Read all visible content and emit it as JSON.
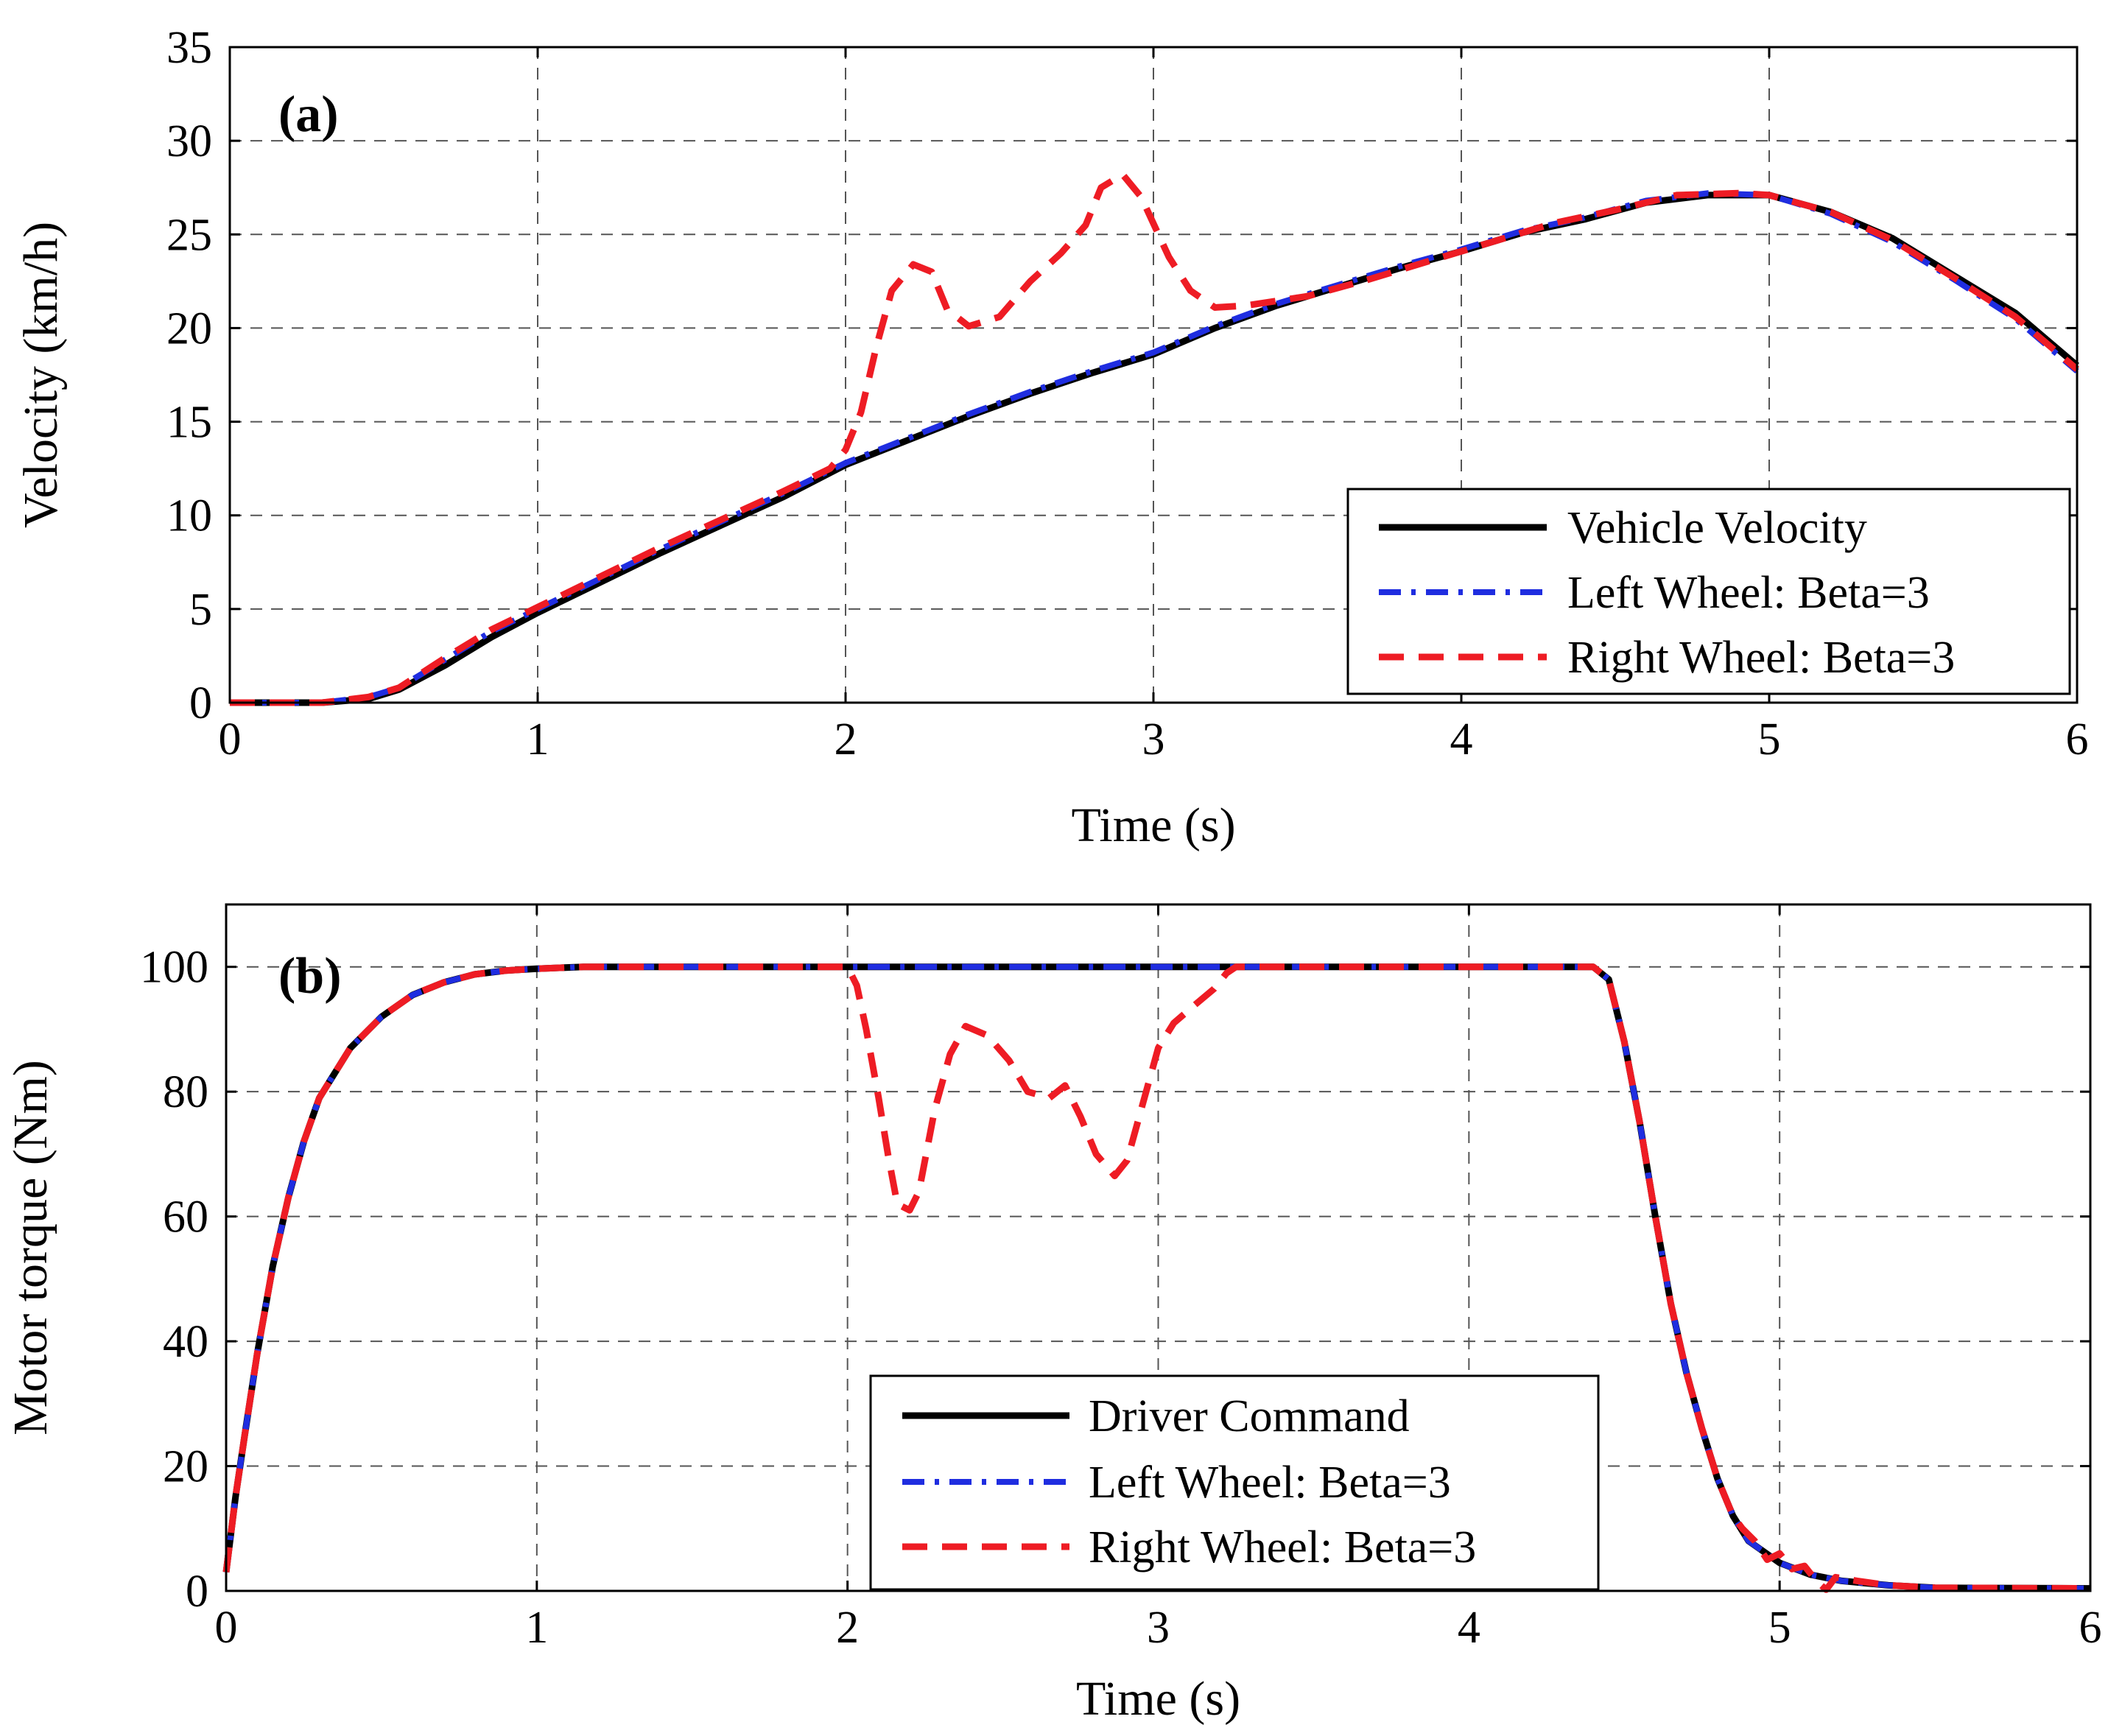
{
  "colors": {
    "black": "#000000",
    "blue": "#1f2de0",
    "red": "#ee1c24"
  },
  "chart_data": [
    {
      "id": "a",
      "type": "line",
      "panel_label": "(a)",
      "xlabel": "Time (s)",
      "ylabel": "Velocity (km/h)",
      "xlim": [
        0,
        6
      ],
      "ylim": [
        0,
        35
      ],
      "xticks": [
        0,
        1,
        2,
        3,
        4,
        5,
        6
      ],
      "yticks": [
        0,
        5,
        10,
        15,
        20,
        25,
        30,
        35
      ],
      "grid": true,
      "legend_position": "bottom-right",
      "series": [
        {
          "name": "Vehicle Velocity",
          "style": "solid",
          "color": "#000000",
          "points": [
            [
              0,
              0
            ],
            [
              0.3,
              0
            ],
            [
              0.45,
              0.2
            ],
            [
              0.55,
              0.7
            ],
            [
              0.7,
              2
            ],
            [
              0.85,
              3.5
            ],
            [
              1.0,
              4.8
            ],
            [
              1.2,
              6.4
            ],
            [
              1.4,
              8.0
            ],
            [
              1.6,
              9.5
            ],
            [
              1.8,
              11.0
            ],
            [
              2.0,
              12.7
            ],
            [
              2.2,
              14.0
            ],
            [
              2.4,
              15.3
            ],
            [
              2.6,
              16.5
            ],
            [
              2.8,
              17.6
            ],
            [
              3.0,
              18.6
            ],
            [
              3.2,
              20.0
            ],
            [
              3.4,
              21.2
            ],
            [
              3.6,
              22.2
            ],
            [
              3.8,
              23.2
            ],
            [
              4.0,
              24.1
            ],
            [
              4.2,
              25.1
            ],
            [
              4.4,
              25.8
            ],
            [
              4.6,
              26.7
            ],
            [
              4.8,
              27.1
            ],
            [
              5.0,
              27.1
            ],
            [
              5.2,
              26.2
            ],
            [
              5.4,
              24.8
            ],
            [
              5.6,
              22.8
            ],
            [
              5.8,
              20.8
            ],
            [
              6.0,
              18.0
            ]
          ]
        },
        {
          "name": "Left Wheel: Beta=3",
          "style": "dashdot",
          "color": "#1f2de0",
          "points": [
            [
              0,
              0
            ],
            [
              0.3,
              0
            ],
            [
              0.45,
              0.3
            ],
            [
              0.55,
              0.8
            ],
            [
              0.7,
              2.3
            ],
            [
              0.85,
              3.8
            ],
            [
              1.0,
              5.0
            ],
            [
              1.2,
              6.6
            ],
            [
              1.4,
              8.2
            ],
            [
              1.6,
              9.7
            ],
            [
              1.8,
              11.2
            ],
            [
              2.0,
              12.8
            ],
            [
              2.2,
              14.1
            ],
            [
              2.4,
              15.4
            ],
            [
              2.6,
              16.6
            ],
            [
              2.8,
              17.7
            ],
            [
              3.0,
              18.7
            ],
            [
              3.2,
              20.1
            ],
            [
              3.4,
              21.3
            ],
            [
              3.6,
              22.3
            ],
            [
              3.8,
              23.3
            ],
            [
              4.0,
              24.2
            ],
            [
              4.2,
              25.2
            ],
            [
              4.4,
              25.9
            ],
            [
              4.6,
              26.8
            ],
            [
              4.8,
              27.2
            ],
            [
              5.0,
              27.1
            ],
            [
              5.2,
              26.1
            ],
            [
              5.4,
              24.6
            ],
            [
              5.6,
              22.6
            ],
            [
              5.8,
              20.5
            ],
            [
              6.0,
              17.7
            ]
          ]
        },
        {
          "name": "Right Wheel: Beta=3",
          "style": "dashed",
          "color": "#ee1c24",
          "points": [
            [
              0,
              0
            ],
            [
              0.3,
              0
            ],
            [
              0.45,
              0.3
            ],
            [
              0.55,
              0.8
            ],
            [
              0.7,
              2.4
            ],
            [
              0.85,
              3.9
            ],
            [
              1.0,
              5.1
            ],
            [
              1.2,
              6.7
            ],
            [
              1.4,
              8.3
            ],
            [
              1.6,
              9.8
            ],
            [
              1.8,
              11.3
            ],
            [
              1.95,
              12.5
            ],
            [
              2.0,
              13.5
            ],
            [
              2.05,
              15.5
            ],
            [
              2.1,
              19.0
            ],
            [
              2.15,
              22.0
            ],
            [
              2.22,
              23.4
            ],
            [
              2.28,
              23.0
            ],
            [
              2.33,
              21.0
            ],
            [
              2.4,
              20.1
            ],
            [
              2.5,
              20.6
            ],
            [
              2.6,
              22.5
            ],
            [
              2.7,
              24.0
            ],
            [
              2.78,
              25.5
            ],
            [
              2.83,
              27.5
            ],
            [
              2.9,
              28.2
            ],
            [
              2.96,
              27.0
            ],
            [
              3.05,
              23.8
            ],
            [
              3.12,
              22.0
            ],
            [
              3.2,
              21.1
            ],
            [
              3.3,
              21.2
            ],
            [
              3.5,
              21.7
            ],
            [
              3.7,
              22.6
            ],
            [
              3.9,
              23.6
            ],
            [
              4.1,
              24.6
            ],
            [
              4.3,
              25.6
            ],
            [
              4.5,
              26.3
            ],
            [
              4.7,
              27.1
            ],
            [
              4.9,
              27.2
            ],
            [
              5.0,
              27.1
            ],
            [
              5.2,
              26.2
            ],
            [
              5.4,
              24.7
            ],
            [
              5.6,
              22.7
            ],
            [
              5.8,
              20.6
            ],
            [
              6.0,
              17.8
            ]
          ]
        }
      ]
    },
    {
      "id": "b",
      "type": "line",
      "panel_label": "(b)",
      "xlabel": "Time (s)",
      "ylabel": "Motor torque (Nm)",
      "xlim": [
        0,
        6
      ],
      "ylim": [
        0,
        110
      ],
      "xticks": [
        0,
        1,
        2,
        3,
        4,
        5,
        6
      ],
      "yticks": [
        0,
        20,
        40,
        60,
        80,
        100
      ],
      "grid": true,
      "legend_position": "bottom-center",
      "series": [
        {
          "name": "Driver Command",
          "style": "solid",
          "color": "#000000",
          "points": [
            [
              0,
              3
            ],
            [
              0.03,
              15
            ],
            [
              0.06,
              25
            ],
            [
              0.1,
              38
            ],
            [
              0.15,
              52
            ],
            [
              0.2,
              63
            ],
            [
              0.25,
              72
            ],
            [
              0.3,
              79
            ],
            [
              0.4,
              87
            ],
            [
              0.5,
              92
            ],
            [
              0.6,
              95.5
            ],
            [
              0.7,
              97.5
            ],
            [
              0.8,
              98.8
            ],
            [
              0.9,
              99.4
            ],
            [
              1.0,
              99.7
            ],
            [
              1.15,
              100
            ],
            [
              4.4,
              100
            ],
            [
              4.45,
              98
            ],
            [
              4.5,
              88
            ],
            [
              4.55,
              75
            ],
            [
              4.6,
              60
            ],
            [
              4.65,
              46
            ],
            [
              4.7,
              35
            ],
            [
              4.75,
              26
            ],
            [
              4.8,
              18
            ],
            [
              4.85,
              12
            ],
            [
              4.9,
              8
            ],
            [
              5.0,
              4.5
            ],
            [
              5.1,
              2.6
            ],
            [
              5.2,
              1.6
            ],
            [
              5.35,
              0.9
            ],
            [
              5.5,
              0.5
            ],
            [
              6.0,
              0.4
            ]
          ]
        },
        {
          "name": "Left Wheel: Beta=3",
          "style": "dashdot",
          "color": "#1f2de0",
          "points": [
            [
              0,
              3
            ],
            [
              0.03,
              15
            ],
            [
              0.06,
              25
            ],
            [
              0.1,
              38
            ],
            [
              0.15,
              52
            ],
            [
              0.2,
              63
            ],
            [
              0.25,
              72
            ],
            [
              0.3,
              79
            ],
            [
              0.4,
              87
            ],
            [
              0.5,
              92
            ],
            [
              0.6,
              95.5
            ],
            [
              0.7,
              97.5
            ],
            [
              0.8,
              98.8
            ],
            [
              0.9,
              99.4
            ],
            [
              1.0,
              99.7
            ],
            [
              1.15,
              100
            ],
            [
              4.4,
              100
            ],
            [
              4.45,
              98
            ],
            [
              4.5,
              88
            ],
            [
              4.55,
              75
            ],
            [
              4.6,
              60
            ],
            [
              4.65,
              46
            ],
            [
              4.7,
              35
            ],
            [
              4.75,
              26
            ],
            [
              4.8,
              18
            ],
            [
              4.85,
              12
            ],
            [
              4.9,
              8
            ],
            [
              5.0,
              4.5
            ],
            [
              5.1,
              2.6
            ],
            [
              5.2,
              1.6
            ],
            [
              5.35,
              0.9
            ],
            [
              5.5,
              0.5
            ],
            [
              6.0,
              0.4
            ]
          ]
        },
        {
          "name": "Right Wheel: Beta=3",
          "style": "dashed",
          "color": "#ee1c24",
          "points": [
            [
              0,
              3
            ],
            [
              0.03,
              15
            ],
            [
              0.06,
              25
            ],
            [
              0.1,
              38
            ],
            [
              0.15,
              52
            ],
            [
              0.2,
              63
            ],
            [
              0.25,
              72
            ],
            [
              0.3,
              79
            ],
            [
              0.4,
              87
            ],
            [
              0.5,
              92
            ],
            [
              0.6,
              95.5
            ],
            [
              0.7,
              97.5
            ],
            [
              0.8,
              98.8
            ],
            [
              0.9,
              99.4
            ],
            [
              1.0,
              99.7
            ],
            [
              1.15,
              100
            ],
            [
              2.0,
              100
            ],
            [
              2.03,
              97
            ],
            [
              2.06,
              90
            ],
            [
              2.1,
              79
            ],
            [
              2.13,
              70
            ],
            [
              2.16,
              62
            ],
            [
              2.2,
              61
            ],
            [
              2.23,
              64
            ],
            [
              2.28,
              77
            ],
            [
              2.33,
              86
            ],
            [
              2.38,
              90.5
            ],
            [
              2.45,
              89
            ],
            [
              2.52,
              85
            ],
            [
              2.58,
              80
            ],
            [
              2.65,
              79
            ],
            [
              2.7,
              81
            ],
            [
              2.75,
              76
            ],
            [
              2.8,
              70
            ],
            [
              2.86,
              66.5
            ],
            [
              2.9,
              69
            ],
            [
              2.95,
              78
            ],
            [
              3.0,
              87
            ],
            [
              3.05,
              91
            ],
            [
              3.12,
              94
            ],
            [
              3.18,
              96.5
            ],
            [
              3.22,
              99
            ],
            [
              3.25,
              100
            ],
            [
              4.4,
              100
            ],
            [
              4.45,
              98
            ],
            [
              4.5,
              88
            ],
            [
              4.55,
              75
            ],
            [
              4.6,
              60
            ],
            [
              4.65,
              46
            ],
            [
              4.7,
              35
            ],
            [
              4.75,
              26
            ],
            [
              4.8,
              18
            ],
            [
              4.85,
              12
            ],
            [
              4.88,
              10
            ],
            [
              4.92,
              8
            ],
            [
              4.96,
              5
            ],
            [
              5.0,
              6
            ],
            [
              5.04,
              3.5
            ],
            [
              5.08,
              4
            ],
            [
              5.12,
              1.5
            ],
            [
              5.15,
              0.2
            ],
            [
              5.18,
              2.2
            ],
            [
              5.25,
              1.6
            ],
            [
              5.35,
              0.9
            ],
            [
              5.5,
              0.5
            ],
            [
              6.0,
              0.4
            ]
          ]
        }
      ]
    }
  ]
}
